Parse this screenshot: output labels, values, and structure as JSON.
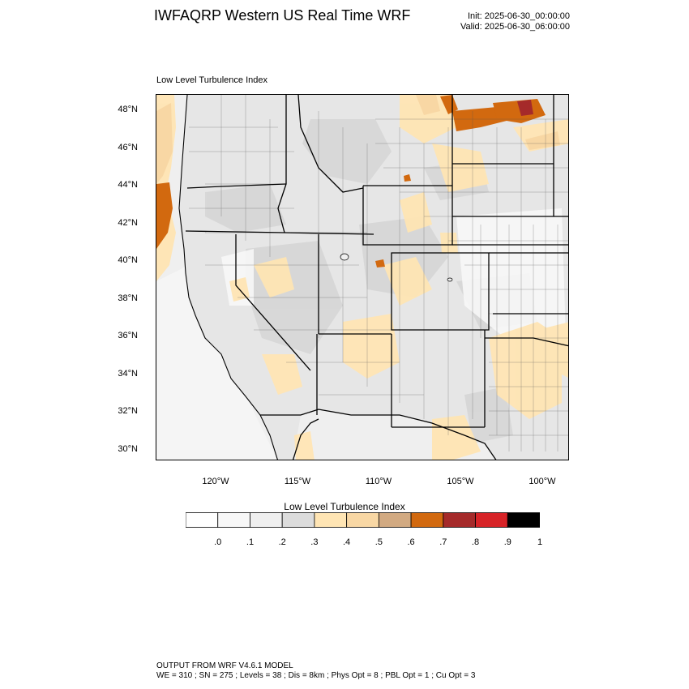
{
  "header": {
    "title": "IWFAQRP Western US Real Time WRF",
    "init": "Init: 2025-06-30_00:00:00",
    "valid": "Valid: 2025-06-30_06:00:00"
  },
  "panel": {
    "title": "Low Level Turbulence Index"
  },
  "map": {
    "lat_labels": [
      "48°N",
      "46°N",
      "44°N",
      "42°N",
      "40°N",
      "38°N",
      "36°N",
      "34°N",
      "32°N",
      "30°N"
    ],
    "lon_labels": [
      "120°W",
      "115°W",
      "110°W",
      "105°W",
      "100°W"
    ],
    "colors": {
      "ocean": "#efefef",
      "land_base": "#e9e9e9",
      "border": "#000000",
      "county": "#555555"
    }
  },
  "colorbar": {
    "title": "Low Level Turbulence Index",
    "colors": [
      "#ffffff",
      "#f7f7f7",
      "#efefef",
      "#dcdcdc",
      "#ffe5b4",
      "#f8d7a4",
      "#d2aa82",
      "#d2690f",
      "#a52a2a",
      "#d72327",
      "#000000"
    ],
    "labels": [
      ".0",
      ".1",
      ".2",
      ".3",
      ".4",
      ".5",
      ".6",
      ".7",
      ".8",
      ".9",
      "1"
    ]
  },
  "footer": {
    "line1": "OUTPUT FROM WRF V4.6.1 MODEL",
    "line2": "WE = 310 ; SN = 275 ; Levels = 38 ; Dis = 8km ; Phys Opt = 8 ; PBL Opt = 1 ; Cu Opt = 3"
  }
}
